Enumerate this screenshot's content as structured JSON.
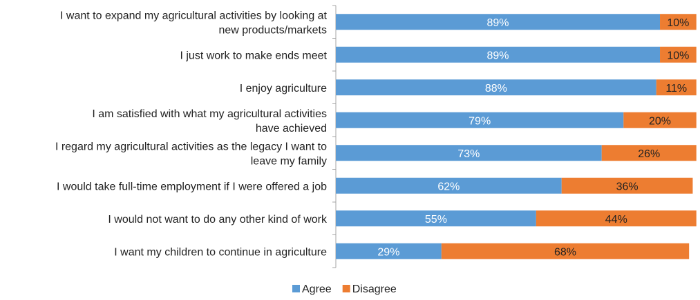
{
  "chart_data": {
    "type": "bar",
    "orientation": "horizontal",
    "stacked": true,
    "categories": [
      [
        "I want to expand my agricultural activities by looking at",
        "new products/markets"
      ],
      [
        "I just work to make ends meet"
      ],
      [
        "I enjoy agriculture"
      ],
      [
        "I am satisfied with what my agricultural activities",
        "have achieved"
      ],
      [
        "I regard my agricultural activities as the legacy I want to",
        "leave my family"
      ],
      [
        "I would take full-time employment if I were offered a job"
      ],
      [
        "I would not want to do any other kind of work"
      ],
      [
        "I want my children to continue in agriculture"
      ]
    ],
    "series": [
      {
        "name": "Agree",
        "color": "#5b9bd5",
        "label_color": "#ffffff",
        "values": [
          89,
          89,
          88,
          79,
          73,
          62,
          55,
          29
        ]
      },
      {
        "name": "Disagree",
        "color": "#ed7d31",
        "label_color": "#222222",
        "values": [
          10,
          10,
          11,
          20,
          26,
          36,
          44,
          68
        ]
      }
    ],
    "value_suffix": "%",
    "xlim": [
      0,
      100
    ],
    "grid": false,
    "legend_position": "bottom"
  }
}
